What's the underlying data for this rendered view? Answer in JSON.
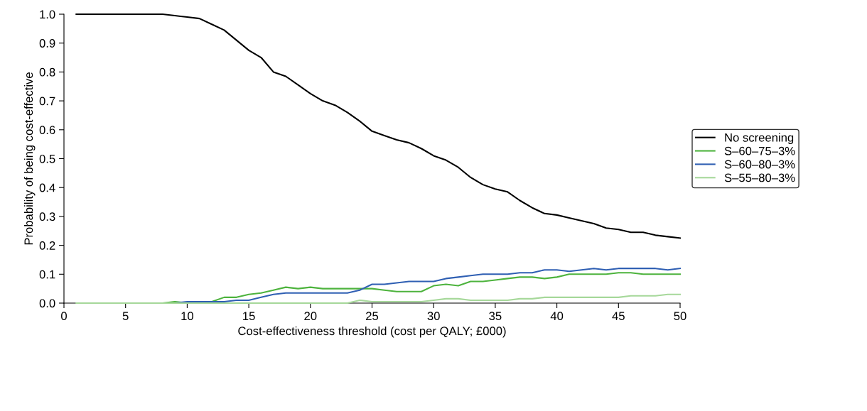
{
  "chart_data": {
    "type": "line",
    "xlabel": "Cost-effectiveness threshold (cost per QALY; £000)",
    "ylabel": "Probability of being cost-effective",
    "x": [
      1,
      2,
      3,
      4,
      5,
      6,
      7,
      8,
      9,
      10,
      11,
      12,
      13,
      14,
      15,
      16,
      17,
      18,
      19,
      20,
      21,
      22,
      23,
      24,
      25,
      26,
      27,
      28,
      29,
      30,
      31,
      32,
      33,
      34,
      35,
      36,
      37,
      38,
      39,
      40,
      41,
      42,
      43,
      44,
      45,
      46,
      47,
      48,
      49,
      50
    ],
    "series": [
      {
        "name": "No screening",
        "color": "#000000",
        "values": [
          1,
          1,
          1,
          1,
          1,
          1,
          1,
          1,
          0.995,
          0.99,
          0.985,
          0.965,
          0.945,
          0.91,
          0.875,
          0.85,
          0.8,
          0.785,
          0.755,
          0.725,
          0.7,
          0.685,
          0.66,
          0.63,
          0.595,
          0.58,
          0.565,
          0.555,
          0.535,
          0.51,
          0.495,
          0.47,
          0.435,
          0.41,
          0.395,
          0.385,
          0.355,
          0.33,
          0.31,
          0.305,
          0.295,
          0.285,
          0.275,
          0.26,
          0.255,
          0.245,
          0.245,
          0.235,
          0.23,
          0.225
        ]
      },
      {
        "name": "S–60–75–3%",
        "color": "#4db33d",
        "values": [
          null,
          null,
          null,
          null,
          null,
          null,
          0,
          0,
          0.005,
          0,
          0,
          0.005,
          0.02,
          0.02,
          0.03,
          0.035,
          0.045,
          0.055,
          0.05,
          0.055,
          0.05,
          0.05,
          0.05,
          0.05,
          0.05,
          0.045,
          0.04,
          0.04,
          0.04,
          0.06,
          0.065,
          0.06,
          0.075,
          0.075,
          0.08,
          0.085,
          0.09,
          0.09,
          0.085,
          0.09,
          0.1,
          0.1,
          0.1,
          0.1,
          0.105,
          0.105,
          0.1,
          0.1,
          0.1,
          0.1
        ]
      },
      {
        "name": "S–60–80–3%",
        "color": "#2f5fb3",
        "values": [
          null,
          null,
          null,
          null,
          null,
          null,
          null,
          0,
          0,
          0.005,
          0.005,
          0.005,
          0.005,
          0.01,
          0.01,
          0.02,
          0.03,
          0.035,
          0.035,
          0.035,
          0.035,
          0.035,
          0.035,
          0.045,
          0.065,
          0.065,
          0.07,
          0.075,
          0.075,
          0.075,
          0.085,
          0.09,
          0.095,
          0.1,
          0.1,
          0.1,
          0.105,
          0.105,
          0.115,
          0.115,
          0.11,
          0.115,
          0.12,
          0.115,
          0.12,
          0.12,
          0.12,
          0.12,
          0.115,
          0.12
        ]
      },
      {
        "name": "S–55–80–3%",
        "color": "#a6d89a",
        "values": [
          0,
          0,
          0,
          0,
          0,
          0,
          0,
          0,
          0,
          0,
          0,
          0,
          0,
          0,
          0,
          0,
          0,
          0,
          0,
          0,
          0,
          0,
          0,
          0.01,
          0.005,
          0.005,
          0.005,
          0.005,
          0.005,
          0.01,
          0.015,
          0.015,
          0.01,
          0.01,
          0.01,
          0.01,
          0.015,
          0.015,
          0.02,
          0.02,
          0.02,
          0.02,
          0.02,
          0.02,
          0.02,
          0.025,
          0.025,
          0.025,
          0.03,
          0.03
        ]
      }
    ],
    "xlim": [
      0,
      50
    ],
    "xticks": [
      0,
      5,
      10,
      15,
      20,
      25,
      30,
      35,
      40,
      45,
      50
    ],
    "ylim": [
      0,
      1.0
    ],
    "yticks": [
      {
        "value": 0,
        "label": "0.0"
      },
      {
        "value": 0.1,
        "label": "0.1"
      },
      {
        "value": 0.2,
        "label": "0.2"
      },
      {
        "value": 0.3,
        "label": "0.3"
      },
      {
        "value": 0.4,
        "label": "0.4"
      },
      {
        "value": 0.5,
        "label": "0.5"
      },
      {
        "value": 0.6,
        "label": "0.6"
      },
      {
        "value": 0.7,
        "label": "0.7"
      },
      {
        "value": 0.8,
        "label": "0.8"
      },
      {
        "value": 0.9,
        "label": "0.9"
      },
      {
        "value": 1.0,
        "label": "1.0"
      }
    ],
    "legend": "right",
    "grid": false,
    "marker": "none",
    "line_style": "solid"
  }
}
